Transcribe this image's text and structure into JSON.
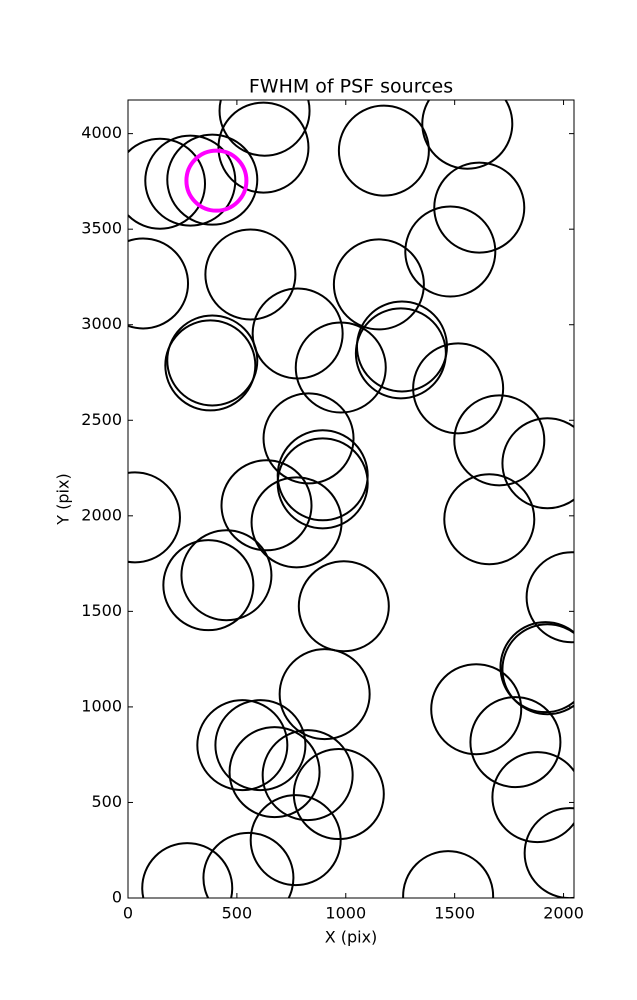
{
  "chart_data": {
    "type": "scatter",
    "title": "FWHM of PSF sources",
    "xlabel": "X (pix)",
    "ylabel": "Y (pix)",
    "xlim": [
      0,
      2048
    ],
    "ylim": [
      0,
      4176
    ],
    "xticks": [
      0,
      500,
      1000,
      1500,
      2000
    ],
    "yticks": [
      0,
      500,
      1000,
      1500,
      2000,
      2500,
      3000,
      3500,
      4000
    ],
    "series": [
      {
        "color": "#000000",
        "x": [
          622,
          627,
          147,
          286,
          387,
          1175,
          1558,
          1613,
          1480,
          562,
          69,
          1152,
          779,
          1258,
          1253,
          387,
          378,
          977,
          1516,
          829,
          1705,
          1926,
          894,
          894,
          32,
          636,
          774,
          1659,
          452,
          369,
          2037,
          991,
          1917,
          1926,
          903,
          1599,
          1779,
          525,
          608,
          673,
          825,
          968,
          1880,
          2028,
          770,
          553,
          272,
          1470
        ],
        "values": [
          3927,
          4120,
          3738,
          3754,
          3759,
          3911,
          4052,
          3613,
          3383,
          3263,
          3216,
          3211,
          2954,
          2886,
          2850,
          2813,
          2787,
          2776,
          2667,
          2405,
          2395,
          2275,
          2212,
          2170,
          1992,
          2055,
          1966,
          1982,
          1689,
          1637,
          1574,
          1527,
          1208,
          1197,
          1067,
          988,
          816,
          800,
          800,
          659,
          643,
          544,
          528,
          235,
          303,
          105,
          52,
          10
        ]
      },
      {
        "color": "#ff00ff",
        "x": [
          406
        ],
        "values": [
          3754
        ]
      }
    ]
  }
}
